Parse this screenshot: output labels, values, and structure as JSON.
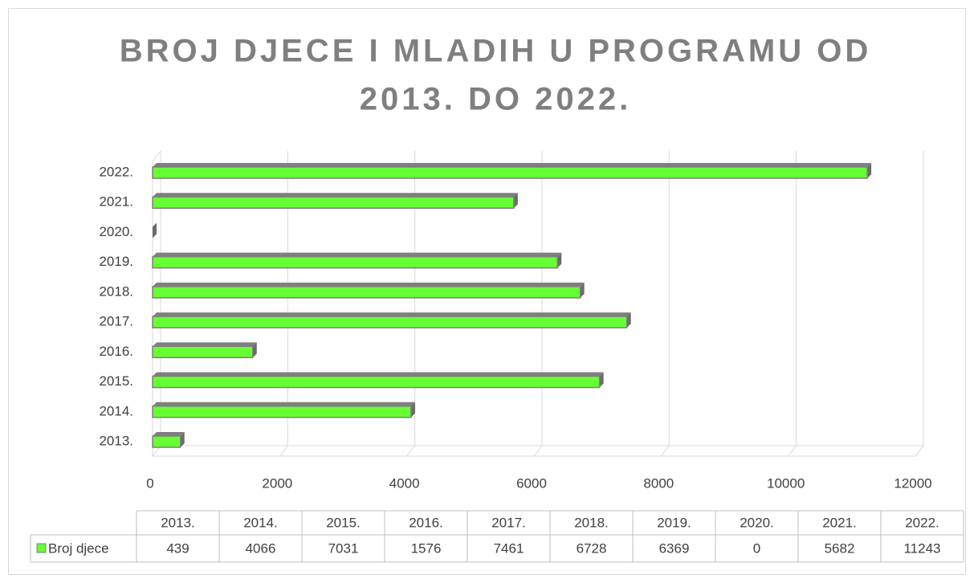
{
  "chart_data": {
    "type": "bar",
    "orientation": "horizontal",
    "title": [
      "BROJ DJECE I MLADIH U PROGRAMU OD",
      "2013. DO 2022."
    ],
    "categories": [
      "2013.",
      "2014.",
      "2015.",
      "2016.",
      "2017.",
      "2018.",
      "2019.",
      "2020.",
      "2021.",
      "2022."
    ],
    "series": [
      {
        "name": "Broj djece",
        "color": "#66ff33",
        "values": [
          439,
          4066,
          7031,
          1576,
          7461,
          6728,
          6369,
          0,
          5682,
          11243
        ]
      }
    ],
    "xlim": [
      0,
      12000
    ],
    "xticks": [
      0,
      2000,
      4000,
      6000,
      8000,
      10000,
      12000
    ],
    "grid": true,
    "data_table": true
  }
}
